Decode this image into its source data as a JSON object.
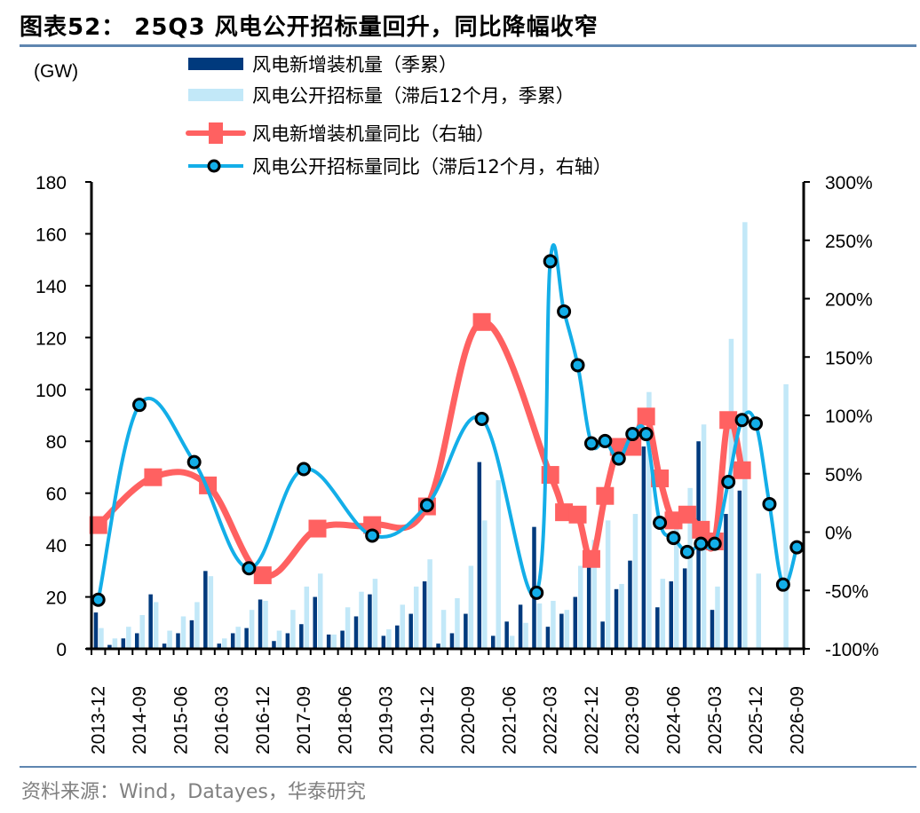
{
  "header": {
    "title": "图表52： 25Q3 风电公开招标量回升，同比降幅收窄"
  },
  "footer": {
    "source": "资料来源：Wind，Datayes，华泰研究"
  },
  "chart_data": {
    "type": "bar",
    "title": "25Q3 风电公开招标量回升，同比降幅收窄",
    "ylabel": "(GW)",
    "y2label": "",
    "ylim": [
      0,
      180
    ],
    "y2lim": [
      -100,
      300
    ],
    "yticks": [
      "0",
      "20",
      "40",
      "60",
      "80",
      "100",
      "120",
      "140",
      "160",
      "180"
    ],
    "y2ticks": [
      "-100%",
      "-50%",
      "0%",
      "50%",
      "100%",
      "150%",
      "200%",
      "250%",
      "300%"
    ],
    "legend_position": "top",
    "grid": false,
    "colors": {
      "installed_bar": "#003a7d",
      "tender_bar": "#c2e8f8",
      "installed_yoy": "#ff6161",
      "tender_yoy": "#13aee8"
    },
    "categories": [
      "2013-12",
      "2014-03",
      "2014-06",
      "2014-09",
      "2014-12",
      "2015-03",
      "2015-06",
      "2015-09",
      "2015-12",
      "2016-03",
      "2016-06",
      "2016-09",
      "2016-12",
      "2017-03",
      "2017-06",
      "2017-09",
      "2017-12",
      "2018-03",
      "2018-06",
      "2018-09",
      "2018-12",
      "2019-03",
      "2019-06",
      "2019-09",
      "2019-12",
      "2020-03",
      "2020-06",
      "2020-09",
      "2020-12",
      "2021-03",
      "2021-06",
      "2021-09",
      "2021-12",
      "2022-03",
      "2022-06",
      "2022-09",
      "2022-12",
      "2023-03",
      "2023-06",
      "2023-09",
      "2023-12",
      "2024-03",
      "2024-06",
      "2024-09",
      "2024-12",
      "2025-03",
      "2025-06",
      "2025-09",
      "2025-12",
      "2026-03",
      "2026-06",
      "2026-09"
    ],
    "xtick_labels": [
      "2013-12",
      "2014-09",
      "2015-06",
      "2016-03",
      "2016-12",
      "2017-09",
      "2018-06",
      "2019-03",
      "2019-12",
      "2020-09",
      "2021-06",
      "2022-03",
      "2022-12",
      "2023-09",
      "2024-06",
      "2025-03",
      "2025-12",
      "2026-09"
    ],
    "series": [
      {
        "name": "风电新增装机量（季累）",
        "type": "bar",
        "axis": "left",
        "values": [
          14,
          1.5,
          4,
          6,
          21,
          2,
          6,
          11,
          30,
          2,
          6,
          8,
          19,
          3,
          6,
          9.5,
          20,
          5.5,
          7,
          12.5,
          21,
          5,
          9,
          13.5,
          26,
          2,
          6,
          13.5,
          72,
          5,
          10.5,
          17,
          47,
          8.5,
          13.5,
          20,
          34,
          10.5,
          23,
          34,
          78,
          16,
          26,
          31,
          80,
          15,
          52,
          61,
          null,
          null,
          null,
          null
        ]
      },
      {
        "name": "风电公开招标量（滞后12个月，季累）",
        "type": "bar",
        "axis": "left",
        "values": [
          8,
          4,
          8.5,
          13,
          18,
          7,
          12.5,
          18,
          28,
          4,
          8.5,
          15,
          18.5,
          7,
          15,
          24,
          29,
          5.5,
          16,
          22,
          27,
          7.5,
          17,
          24,
          34.5,
          15,
          19.5,
          32,
          49.5,
          65,
          5,
          10,
          17.5,
          18.5,
          15,
          32,
          42,
          49.5,
          25,
          52,
          99,
          27,
          50,
          62,
          86.5,
          24,
          119.5,
          164.5,
          29,
          null,
          102,
          null
        ]
      },
      {
        "name": "风电新增装机量同比（右轴）",
        "type": "line",
        "axis": "right",
        "marker": "square",
        "points": [
          [
            0,
            6
          ],
          [
            4,
            47
          ],
          [
            8,
            40
          ],
          [
            12,
            -37
          ],
          [
            16,
            3
          ],
          [
            20,
            6
          ],
          [
            24,
            22
          ],
          [
            28,
            180
          ],
          [
            33,
            49
          ],
          [
            34,
            17
          ],
          [
            35,
            15
          ],
          [
            36,
            -23
          ],
          [
            37,
            31
          ],
          [
            38,
            73
          ],
          [
            39,
            73
          ],
          [
            40,
            99
          ],
          [
            41,
            46
          ],
          [
            42,
            10
          ],
          [
            43,
            15
          ],
          [
            44,
            2
          ],
          [
            45,
            -8
          ],
          [
            46,
            96
          ],
          [
            47,
            53
          ]
        ]
      },
      {
        "name": "风电公开招标量同比（滞后12个月，右轴）",
        "type": "line",
        "axis": "right",
        "marker": "circle",
        "points": [
          [
            0,
            -58
          ],
          [
            3,
            109
          ],
          [
            7,
            60
          ],
          [
            11,
            -31
          ],
          [
            15,
            54
          ],
          [
            20,
            -3
          ],
          [
            24,
            23
          ],
          [
            28,
            97
          ],
          [
            32,
            -52
          ],
          [
            33,
            232
          ],
          [
            34,
            189
          ],
          [
            35,
            143
          ],
          [
            36,
            76
          ],
          [
            37,
            78
          ],
          [
            38,
            63
          ],
          [
            39,
            84
          ],
          [
            40,
            84
          ],
          [
            41,
            8
          ],
          [
            42,
            -5
          ],
          [
            43,
            -17
          ],
          [
            44,
            -10
          ],
          [
            45,
            -10
          ],
          [
            46,
            43
          ],
          [
            47,
            96
          ],
          [
            48,
            93
          ],
          [
            49,
            24
          ],
          [
            50,
            -45
          ],
          [
            51,
            -13
          ]
        ]
      }
    ]
  }
}
